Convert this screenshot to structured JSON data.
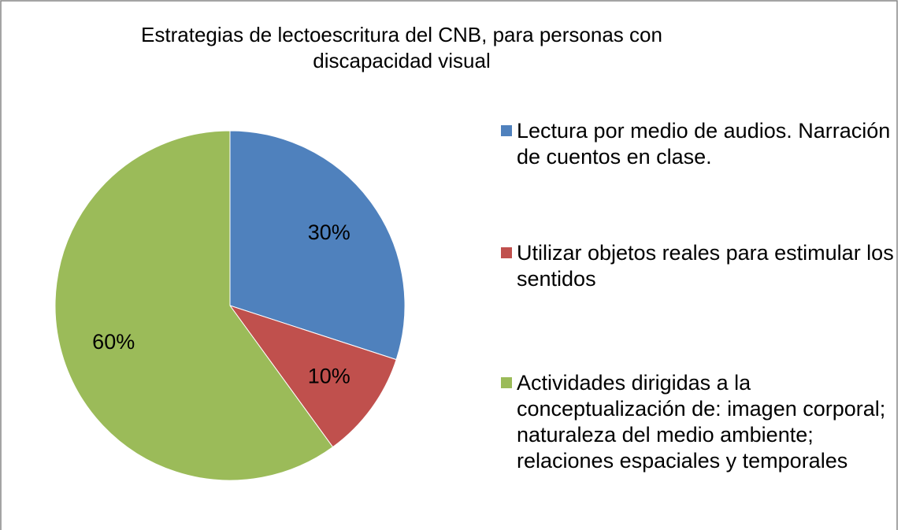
{
  "chart_data": {
    "type": "pie",
    "title": "Estrategias de lectoescritura del CNB, para personas con discapacidad visual",
    "categories": [
      "Lectura por medio de audios. Narración de cuentos en clase.",
      "Utilizar objetos reales para estimular los sentidos",
      "Actividades dirigidas a la conceptualización de: imagen corporal; naturaleza del medio ambiente; relaciones espaciales y temporales"
    ],
    "values": [
      30,
      10,
      60
    ],
    "value_labels": [
      "30%",
      "10%",
      "60%"
    ],
    "colors": [
      "#4f81bd",
      "#c0504d",
      "#9bbb59"
    ],
    "legend": "right"
  }
}
